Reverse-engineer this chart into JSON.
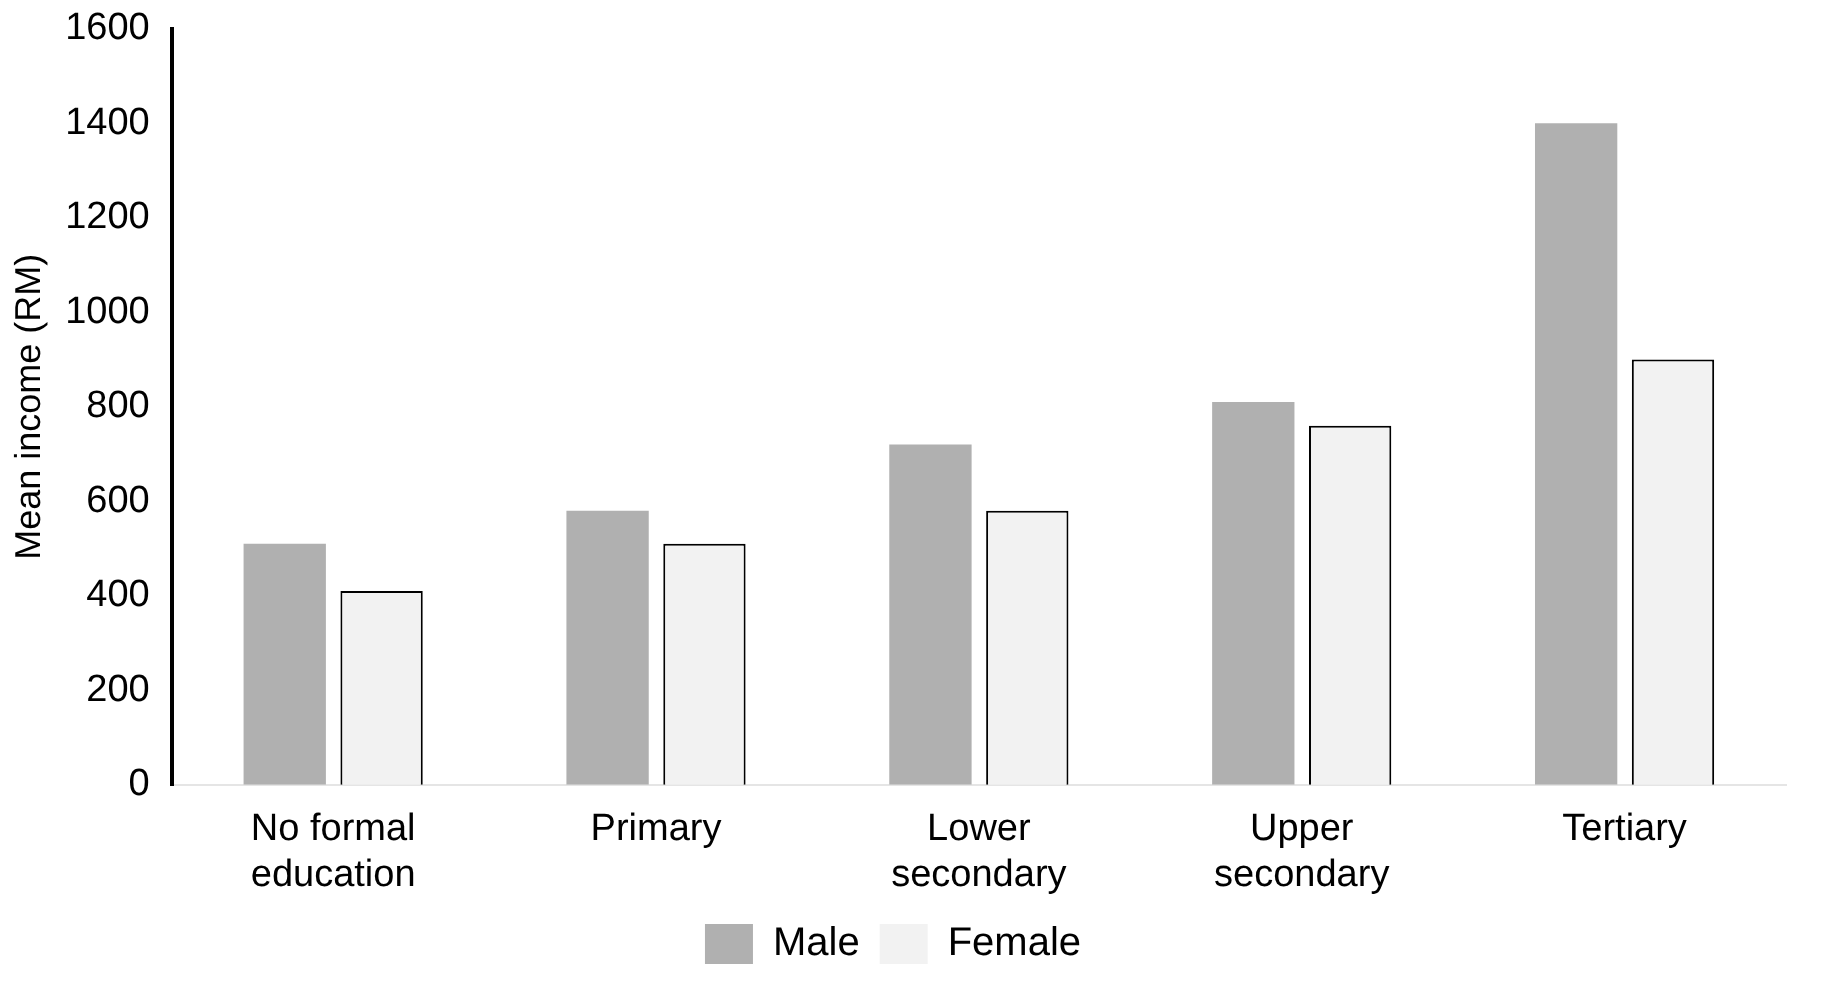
{
  "chart_data": {
    "type": "bar",
    "ylabel": "Mean income (RM)",
    "categories": [
      "No formal education",
      "Primary",
      "Lower secondary",
      "Upper secondary",
      "Tertiary"
    ],
    "series": [
      {
        "name": "Male",
        "color": "#b0b0b0",
        "values": [
          510,
          580,
          720,
          810,
          1400
        ]
      },
      {
        "name": "Female",
        "color": "#f2f2f2",
        "values": [
          410,
          510,
          580,
          760,
          900
        ]
      }
    ],
    "ylim": [
      0,
      1600
    ],
    "yticks": [
      0,
      200,
      400,
      600,
      800,
      1000,
      1200,
      1400,
      1600
    ],
    "grid": false,
    "legend": "bottom"
  }
}
